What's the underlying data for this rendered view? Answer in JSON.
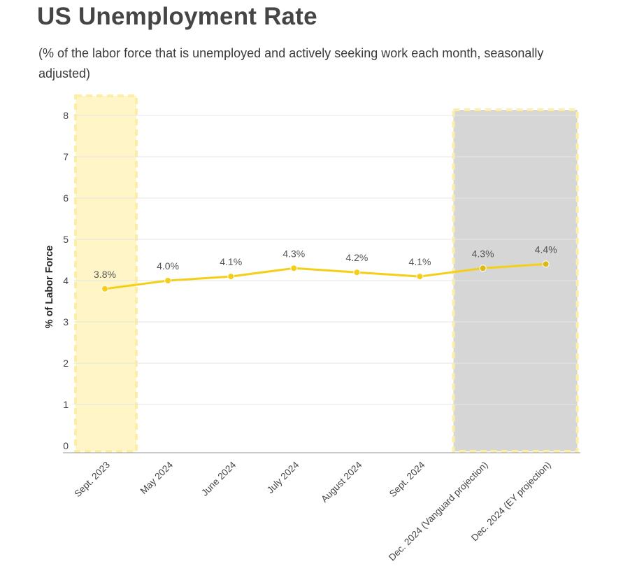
{
  "header": {
    "title": "US Unemployment Rate",
    "subtitle": "(% of the labor force that is unemployed and actively seeking work each month, seasonally adjusted)"
  },
  "chart_data": {
    "type": "line",
    "title": "US Unemployment Rate",
    "subtitle": "(% of the labor force that is unemployed and actively seeking work each month, seasonally adjusted)",
    "ylabel": "% of Labor Force",
    "xlabel": "",
    "ylim": [
      0,
      8
    ],
    "yticks": [
      0,
      1,
      2,
      3,
      4,
      5,
      6,
      7,
      8
    ],
    "grid": true,
    "categories": [
      "Sept. 2023",
      "May 2024",
      "June 2024",
      "July 2024",
      "August 2024",
      "Sept. 2024",
      "Dec. 2024 (Vanguard projection)",
      "Dec. 2024 (EY projection)"
    ],
    "series": [
      {
        "values": [
          3.8,
          4.0,
          4.1,
          4.3,
          4.2,
          4.1,
          4.3,
          4.4
        ],
        "labels": [
          "3.8%",
          "4.0%",
          "4.1%",
          "4.3%",
          "4.2%",
          "4.1%",
          "4.3%",
          "4.4%"
        ],
        "color": "#f5cf17"
      }
    ],
    "highlights": [
      {
        "kind": "category-band",
        "from": 0,
        "to": 0,
        "color": "#fff5c7",
        "border": "#fdeea7"
      },
      {
        "kind": "category-band",
        "from": 6,
        "to": 7,
        "color": "#d6d6d6",
        "border": "#fdeea7"
      }
    ],
    "colors": {
      "line": "#f5cf17",
      "point": "#f5cf17",
      "point_in_band": "#dcb815",
      "grid": "#e6e6e6",
      "axis": "#999999"
    }
  }
}
